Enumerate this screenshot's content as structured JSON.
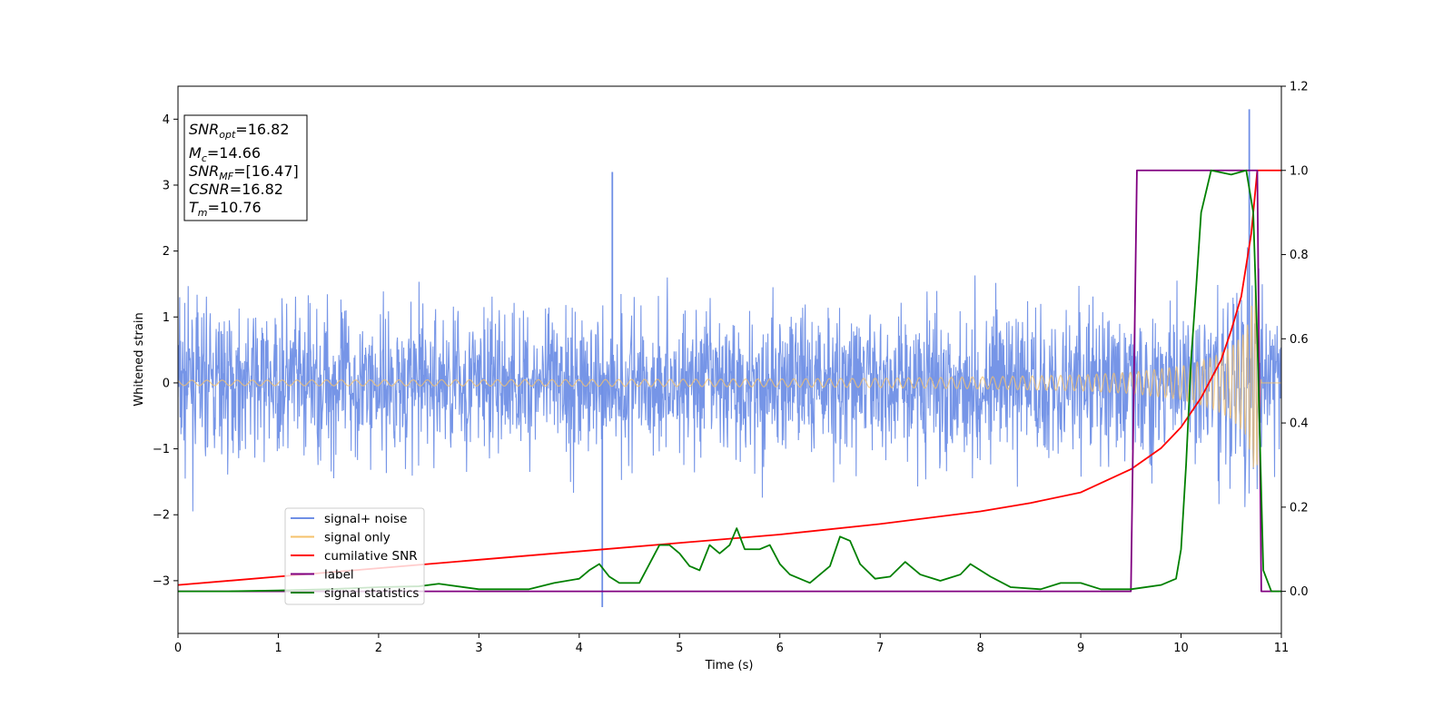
{
  "chart_data": {
    "type": "line",
    "xlabel": "Time (s)",
    "ylabel": "Whitened strain",
    "xlim": [
      0,
      11
    ],
    "ylim": [
      -3.8,
      4.5
    ],
    "y2lim": [
      -0.1,
      1.2
    ],
    "xticks": [
      0,
      1,
      2,
      3,
      4,
      5,
      6,
      7,
      8,
      9,
      10,
      11
    ],
    "yticks": [
      -3,
      -2,
      -1,
      0,
      1,
      2,
      3,
      4
    ],
    "yticklabels": [
      "−3",
      "−2",
      "−1",
      "0",
      "1",
      "2",
      "3",
      "4"
    ],
    "y2ticks": [
      0.0,
      0.2,
      0.4,
      0.6,
      0.8,
      1.0,
      1.2
    ],
    "y2ticklabels": [
      "0.0",
      "0.2",
      "0.4",
      "0.6",
      "0.8",
      "1.0",
      "1.2"
    ],
    "grid": false,
    "legend_position": "lower-left",
    "annotation": [
      {
        "base": "SNR",
        "sub": "opt",
        "rest": "=16.82"
      },
      {
        "base": "M",
        "sub": "c",
        "rest": "=14.66"
      },
      {
        "base": "SNR",
        "sub": "MF",
        "rest": "=[16.47]"
      },
      {
        "base": "CSNR",
        "sub": "",
        "rest": "=16.82"
      },
      {
        "base": "T",
        "sub": "m",
        "rest": "=10.76"
      }
    ],
    "series": [
      {
        "name": "signal+ noise",
        "color": "#6f8fe6",
        "axis": "left",
        "description_points": {
          "x": [
            0.0,
            4.23,
            4.33,
            10.68,
            11.0
          ],
          "y": [
            0.0,
            -3.4,
            3.2,
            4.15,
            0.0
          ]
        },
        "typical_range": [
          -2.5,
          2.5
        ]
      },
      {
        "name": "signal only",
        "color": "#f5c26b",
        "axis": "left",
        "envelope": {
          "x": [
            0,
            2,
            4,
            6,
            7,
            8,
            9,
            9.5,
            10,
            10.3,
            10.5,
            10.65,
            10.75,
            10.8
          ],
          "amplitude": [
            0.04,
            0.045,
            0.05,
            0.06,
            0.07,
            0.09,
            0.12,
            0.16,
            0.25,
            0.38,
            0.55,
            0.8,
            1.5,
            0
          ]
        }
      },
      {
        "name": "cumilative SNR",
        "color": "#ff0000",
        "axis": "right",
        "x": [
          0,
          1,
          2,
          3,
          4,
          5,
          6,
          7,
          8,
          8.5,
          9,
          9.5,
          9.8,
          10,
          10.2,
          10.4,
          10.5,
          10.6,
          10.7,
          10.76,
          10.8,
          11
        ],
        "y": [
          0.015,
          0.035,
          0.055,
          0.075,
          0.095,
          0.115,
          0.135,
          0.16,
          0.19,
          0.21,
          0.235,
          0.29,
          0.34,
          0.39,
          0.46,
          0.55,
          0.62,
          0.7,
          0.85,
          1.0,
          1.0,
          1.0
        ]
      },
      {
        "name": "label",
        "color": "#800080",
        "axis": "right",
        "x": [
          0,
          9.5,
          9.56,
          10.76,
          10.8,
          11
        ],
        "y": [
          0,
          0,
          1,
          1,
          0,
          0
        ]
      },
      {
        "name": "signal statistics",
        "color": "#008000",
        "axis": "right",
        "x": [
          0,
          0.5,
          1,
          1.5,
          2,
          2.4,
          2.6,
          3,
          3.5,
          3.75,
          4,
          4.1,
          4.2,
          4.3,
          4.4,
          4.6,
          4.8,
          4.9,
          5.0,
          5.1,
          5.2,
          5.3,
          5.4,
          5.5,
          5.57,
          5.65,
          5.8,
          5.9,
          6.0,
          6.1,
          6.3,
          6.5,
          6.6,
          6.7,
          6.8,
          6.95,
          7.1,
          7.25,
          7.4,
          7.6,
          7.8,
          7.9,
          8.1,
          8.3,
          8.6,
          8.8,
          9.0,
          9.2,
          9.5,
          9.8,
          9.95,
          10.0,
          10.05,
          10.1,
          10.15,
          10.2,
          10.3,
          10.5,
          10.65,
          10.72,
          10.76,
          10.82,
          10.9,
          11
        ],
        "y": [
          0,
          0,
          0.002,
          0.005,
          0.01,
          0.012,
          0.018,
          0.005,
          0.005,
          0.02,
          0.03,
          0.05,
          0.065,
          0.035,
          0.02,
          0.02,
          0.11,
          0.11,
          0.09,
          0.06,
          0.05,
          0.11,
          0.09,
          0.11,
          0.15,
          0.1,
          0.1,
          0.11,
          0.065,
          0.04,
          0.02,
          0.06,
          0.13,
          0.12,
          0.065,
          0.03,
          0.035,
          0.07,
          0.04,
          0.025,
          0.04,
          0.065,
          0.035,
          0.01,
          0.005,
          0.02,
          0.02,
          0.005,
          0.005,
          0.015,
          0.03,
          0.1,
          0.3,
          0.55,
          0.72,
          0.9,
          1.0,
          0.99,
          1.0,
          0.9,
          0.6,
          0.05,
          0.0,
          0.0
        ]
      }
    ]
  }
}
